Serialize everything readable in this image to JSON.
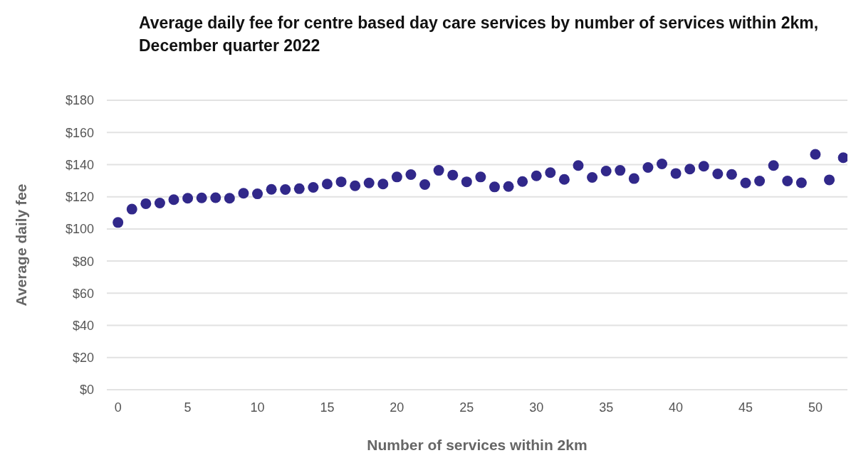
{
  "chart_data": {
    "type": "scatter",
    "title": "Average daily fee for centre based day care services by number of services within 2km, December quarter 2022",
    "xlabel": "Number of services within 2km",
    "ylabel": "Average daily fee",
    "x": [
      0,
      1,
      2,
      3,
      4,
      5,
      6,
      7,
      8,
      9,
      10,
      11,
      12,
      13,
      14,
      15,
      16,
      17,
      18,
      19,
      20,
      21,
      22,
      23,
      24,
      25,
      26,
      27,
      28,
      29,
      30,
      31,
      32,
      33,
      34,
      35,
      36,
      37,
      38,
      39,
      40,
      41,
      42,
      43,
      44,
      45,
      46,
      47,
      48,
      49,
      50,
      51,
      52
    ],
    "series": [
      {
        "color": "#31288a",
        "values": [
          104,
          112.3,
          115.7,
          116.1,
          118.2,
          119.1,
          119.3,
          119.4,
          119.1,
          122.2,
          121.8,
          124.6,
          124.5,
          125,
          125.8,
          127.9,
          129.3,
          126.8,
          128.6,
          127.9,
          132.3,
          133.8,
          127.6,
          136.4,
          133.5,
          129.3,
          132.3,
          126.1,
          126.4,
          129.5,
          133,
          135,
          130.8,
          139.4,
          132,
          136,
          136.4,
          131.3,
          138.2,
          140.4,
          134.5,
          137.2,
          139,
          134.2,
          133.9,
          128.6,
          129.8,
          139.4,
          129.8,
          128.7,
          146.4,
          130.5,
          144.3
        ]
      }
    ],
    "xlim": [
      -0.8,
      52.3
    ],
    "xticks": [
      0,
      5,
      10,
      15,
      20,
      25,
      30,
      35,
      40,
      45,
      50
    ],
    "ylim": [
      0,
      180
    ],
    "yticks": [
      {
        "value": 0,
        "label": "$0"
      },
      {
        "value": 20,
        "label": "$20"
      },
      {
        "value": 40,
        "label": "$40"
      },
      {
        "value": 60,
        "label": "$60"
      },
      {
        "value": 80,
        "label": "$80"
      },
      {
        "value": 100,
        "label": "$100"
      },
      {
        "value": 120,
        "label": "$120"
      },
      {
        "value": 140,
        "label": "$140"
      },
      {
        "value": 160,
        "label": "$160"
      },
      {
        "value": 180,
        "label": "$180"
      }
    ],
    "grid": "y",
    "marker": "circle"
  }
}
